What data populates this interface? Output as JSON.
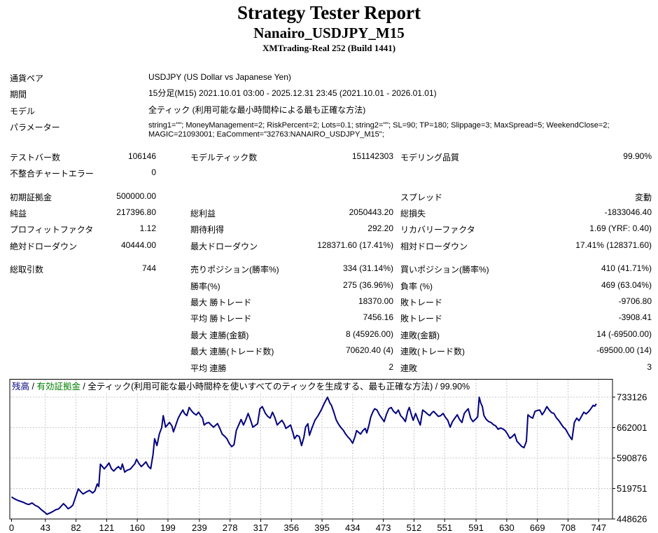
{
  "header": {
    "title": "Strategy Tester Report",
    "symbol_name": "Nanairo_USDJPY_M15",
    "server": "XMTrading-Real 252 (Build 1441)"
  },
  "settings": {
    "rows": [
      {
        "label": "通貨ペア",
        "value": "USDJPY (US Dollar vs Japanese Yen)"
      },
      {
        "label": "期間",
        "value": "15分足(M15) 2021.10.01 03:00 - 2025.12.31 23:45 (2021.10.01 - 2026.01.01)"
      },
      {
        "label": "モデル",
        "value": "全ティック (利用可能な最小時間枠による最も正確な方法)"
      },
      {
        "label": "パラメーター",
        "value": "string1=\"\"; MoneyManagement=2; RiskPercent=2; Lots=0.1; string2=\"\"; SL=90; TP=180; Slippage=3; MaxSpread=5; WeekendClose=2; MAGIC=21093001; EaComment=\"32763:NANAIRO_USDJPY_M15\";"
      }
    ]
  },
  "stats": {
    "rows": [
      {
        "c1": "テストバー数",
        "v1": "106146",
        "c2": "モデルティック数",
        "v2": "151142303",
        "c3": "モデリング品質",
        "v3": "99.90%",
        "gap": false
      },
      {
        "c1": "不整合チャートエラー",
        "v1": "0",
        "c2": "",
        "v2": "",
        "c3": "",
        "v3": "",
        "gap": false
      },
      {
        "c1": "初期証拠金",
        "v1": "500000.00",
        "c2": "",
        "v2": "",
        "c3": "スプレッド",
        "v3": "変動",
        "gap": true
      },
      {
        "c1": "純益",
        "v1": "217396.80",
        "c2": "総利益",
        "v2": "2050443.20",
        "c3": "総損失",
        "v3": "-1833046.40",
        "gap": false
      },
      {
        "c1": "プロフィットファクタ",
        "v1": "1.12",
        "c2": "期待利得",
        "v2": "292.20",
        "c3": "リカバリーファクタ",
        "v3": "1.69 (YRF: 0.40)",
        "gap": false
      },
      {
        "c1": "絶対ドローダウン",
        "v1": "40444.00",
        "c2": "最大ドローダウン",
        "v2": "128371.60 (17.41%)",
        "c3": "相対ドローダウン",
        "v3": "17.41% (128371.60)",
        "gap": false
      },
      {
        "c1": "総取引数",
        "v1": "744",
        "c2": "売りポジション(勝率%)",
        "v2": "334 (31.14%)",
        "c3": "買いポジション(勝率%)",
        "v3": "410 (41.71%)",
        "gap": true
      },
      {
        "c1": "",
        "v1": "",
        "c2": "勝率(%)",
        "v2": "275 (36.96%)",
        "c3": "負率 (%)",
        "v3": "469 (63.04%)",
        "gap": false
      },
      {
        "c1": "",
        "v1": "",
        "c2": "最大 勝トレード",
        "v2": "18370.00",
        "c3": "敗トレード",
        "v3": "-9706.80",
        "gap": false
      },
      {
        "c1": "",
        "v1": "",
        "c2": "平均 勝トレード",
        "v2": "7456.16",
        "c3": "敗トレード",
        "v3": "-3908.41",
        "gap": false
      },
      {
        "c1": "",
        "v1": "",
        "c2": "最大 連勝(金額)",
        "v2": "8 (45926.00)",
        "c3": "連敗(金額)",
        "v3": "14 (-69500.00)",
        "gap": false
      },
      {
        "c1": "",
        "v1": "",
        "c2": "最大 連勝(トレード数)",
        "v2": "70620.40 (4)",
        "c3": "連敗(トレード数)",
        "v3": "-69500.00 (14)",
        "gap": false
      },
      {
        "c1": "",
        "v1": "",
        "c2": "平均 連勝",
        "v2": "2",
        "c3": "連敗",
        "v3": "3",
        "gap": false
      }
    ]
  },
  "chart_data": {
    "type": "line",
    "legend_parts": [
      {
        "text": "残高",
        "color": "#000080"
      },
      {
        "text": " / ",
        "color": "#000000"
      },
      {
        "text": "有効証拠金",
        "color": "#008000"
      },
      {
        "text": " / 全ティック(利用可能な最小時間枠を使いすべてのティックを生成する、最も正確な方法) / 99.90%",
        "color": "#000000"
      }
    ],
    "grid_color": "#c9c9c9",
    "x_ticks": [
      0,
      43,
      82,
      121,
      160,
      199,
      239,
      278,
      317,
      356,
      395,
      434,
      473,
      512,
      551,
      591,
      630,
      669,
      708,
      747
    ],
    "y_ticks": [
      448626,
      519751,
      590876,
      662001,
      733126
    ],
    "xlim": [
      0,
      765
    ],
    "ylim": [
      448626,
      733126
    ],
    "series": [
      {
        "name": "残高",
        "color": "#000080",
        "points": [
          [
            0,
            500000
          ],
          [
            4,
            495500
          ],
          [
            8,
            492000
          ],
          [
            12,
            489500
          ],
          [
            15,
            487500
          ],
          [
            19,
            484000
          ],
          [
            22,
            482500
          ],
          [
            26,
            486000
          ],
          [
            30,
            480500
          ],
          [
            34,
            477000
          ],
          [
            38,
            470000
          ],
          [
            42,
            464500
          ],
          [
            45,
            459556
          ],
          [
            48,
            462000
          ],
          [
            52,
            465500
          ],
          [
            56,
            470000
          ],
          [
            60,
            472500
          ],
          [
            63,
            478000
          ],
          [
            66,
            484500
          ],
          [
            69,
            479000
          ],
          [
            72,
            472500
          ],
          [
            75,
            476000
          ],
          [
            78,
            481000
          ],
          [
            82,
            503000
          ],
          [
            85,
            519000
          ],
          [
            88,
            512500
          ],
          [
            91,
            507000
          ],
          [
            95,
            511500
          ],
          [
            99,
            515500
          ],
          [
            103,
            509500
          ],
          [
            106,
            514000
          ],
          [
            109,
            530500
          ],
          [
            111,
            524500
          ],
          [
            113,
            576500
          ],
          [
            116,
            570000
          ],
          [
            118,
            565500
          ],
          [
            121,
            572000
          ],
          [
            124,
            579500
          ],
          [
            127,
            566000
          ],
          [
            130,
            560500
          ],
          [
            133,
            566500
          ],
          [
            136,
            571000
          ],
          [
            139,
            564500
          ],
          [
            141,
            577000
          ],
          [
            144,
            558000
          ],
          [
            147,
            562500
          ],
          [
            151,
            565000
          ],
          [
            154,
            571500
          ],
          [
            157,
            578000
          ],
          [
            159,
            588000
          ],
          [
            162,
            578500
          ],
          [
            165,
            571000
          ],
          [
            168,
            576000
          ],
          [
            171,
            582000
          ],
          [
            174,
            571500
          ],
          [
            177,
            566000
          ],
          [
            180,
            599000
          ],
          [
            182,
            636000
          ],
          [
            185,
            620000
          ],
          [
            188,
            647000
          ],
          [
            191,
            662000
          ],
          [
            193,
            690000
          ],
          [
            196,
            663000
          ],
          [
            199,
            670000
          ],
          [
            201,
            674000
          ],
          [
            204,
            666000
          ],
          [
            206,
            652000
          ],
          [
            209,
            668000
          ],
          [
            212,
            684000
          ],
          [
            215,
            694000
          ],
          [
            218,
            703000
          ],
          [
            220,
            695000
          ],
          [
            223,
            690000
          ],
          [
            226,
            709000
          ],
          [
            229,
            701000
          ],
          [
            232,
            695000
          ],
          [
            235,
            691500
          ],
          [
            238,
            698000
          ],
          [
            241,
            689000
          ],
          [
            243,
            684000
          ],
          [
            245,
            668000
          ],
          [
            248,
            672500
          ],
          [
            251,
            674000
          ],
          [
            254,
            668000
          ],
          [
            257,
            663000
          ],
          [
            260,
            668000
          ],
          [
            262,
            671500
          ],
          [
            265,
            660000
          ],
          [
            268,
            647000
          ],
          [
            271,
            642000
          ],
          [
            274,
            636000
          ],
          [
            277,
            625000
          ],
          [
            280,
            617500
          ],
          [
            283,
            622000
          ],
          [
            286,
            655500
          ],
          [
            289,
            668000
          ],
          [
            292,
            681000
          ],
          [
            295,
            668000
          ],
          [
            298,
            680000
          ],
          [
            301,
            695000
          ],
          [
            304,
            680000
          ],
          [
            307,
            663000
          ],
          [
            310,
            667000
          ],
          [
            313,
            671000
          ],
          [
            316,
            706000
          ],
          [
            319,
            711000
          ],
          [
            323,
            695000
          ],
          [
            326,
            688000
          ],
          [
            329,
            684000
          ],
          [
            332,
            698000
          ],
          [
            335,
            685000
          ],
          [
            338,
            668000
          ],
          [
            341,
            674000
          ],
          [
            344,
            679000
          ],
          [
            347,
            670000
          ],
          [
            349,
            660000
          ],
          [
            352,
            664000
          ],
          [
            355,
            668000
          ],
          [
            358,
            650000
          ],
          [
            360,
            636000
          ],
          [
            363,
            644000
          ],
          [
            366,
            641000
          ],
          [
            369,
            620000
          ],
          [
            372,
            640000
          ],
          [
            374,
            663000
          ],
          [
            377,
            671000
          ],
          [
            379,
            644000
          ],
          [
            382,
            660000
          ],
          [
            386,
            679000
          ],
          [
            390,
            690000
          ],
          [
            394,
            703000
          ],
          [
            398,
            719000
          ],
          [
            402,
            733000
          ],
          [
            405,
            719000
          ],
          [
            407,
            714000
          ],
          [
            410,
            698000
          ],
          [
            413,
            680000
          ],
          [
            416,
            670000
          ],
          [
            419,
            662000
          ],
          [
            422,
            656000
          ],
          [
            425,
            647000
          ],
          [
            428,
            640000
          ],
          [
            431,
            634000
          ],
          [
            434,
            625500
          ],
          [
            437,
            641000
          ],
          [
            439,
            655000
          ],
          [
            442,
            650000
          ],
          [
            444,
            647000
          ],
          [
            447,
            655000
          ],
          [
            450,
            660000
          ],
          [
            452,
            649500
          ],
          [
            455,
            670000
          ],
          [
            457,
            687000
          ],
          [
            460,
            700000
          ],
          [
            462,
            706000
          ],
          [
            465,
            703000
          ],
          [
            468,
            692000
          ],
          [
            471,
            684000
          ],
          [
            474,
            676000
          ],
          [
            477,
            693000
          ],
          [
            480,
            706000
          ],
          [
            483,
            709000
          ],
          [
            486,
            700000
          ],
          [
            489,
            695000
          ],
          [
            492,
            703000
          ],
          [
            495,
            690000
          ],
          [
            498,
            684000
          ],
          [
            501,
            676000
          ],
          [
            504,
            700000
          ],
          [
            506,
            709000
          ],
          [
            509,
            690000
          ],
          [
            511,
            679000
          ],
          [
            514,
            695000
          ],
          [
            517,
            681000
          ],
          [
            520,
            668000
          ],
          [
            523,
            703000
          ],
          [
            526,
            699000
          ],
          [
            529,
            694000
          ],
          [
            532,
            690000
          ],
          [
            535,
            697000
          ],
          [
            537,
            700000
          ],
          [
            540,
            694000
          ],
          [
            543,
            688000
          ],
          [
            546,
            690000
          ],
          [
            549,
            695000
          ],
          [
            552,
            686000
          ],
          [
            555,
            679000
          ],
          [
            558,
            663000
          ],
          [
            561,
            676000
          ],
          [
            564,
            684000
          ],
          [
            567,
            692000
          ],
          [
            570,
            681000
          ],
          [
            573,
            674000
          ],
          [
            576,
            695000
          ],
          [
            579,
            702000
          ],
          [
            581,
            706000
          ],
          [
            584,
            684000
          ],
          [
            587,
            676000
          ],
          [
            590,
            681000
          ],
          [
            593,
            687000
          ],
          [
            595,
            733000
          ],
          [
            597,
            719000
          ],
          [
            599,
            711000
          ],
          [
            601,
            690000
          ],
          [
            604,
            681000
          ],
          [
            607,
            676000
          ],
          [
            610,
            674000
          ],
          [
            613,
            669000
          ],
          [
            616,
            666000
          ],
          [
            619,
            658000
          ],
          [
            622,
            661000
          ],
          [
            625,
            659000
          ],
          [
            628,
            655000
          ],
          [
            631,
            647000
          ],
          [
            634,
            637000
          ],
          [
            637,
            641000
          ],
          [
            640,
            647000
          ],
          [
            643,
            630000
          ],
          [
            646,
            624000
          ],
          [
            649,
            618000
          ],
          [
            652,
            615000
          ],
          [
            655,
            630000
          ],
          [
            657,
            692000
          ],
          [
            660,
            687000
          ],
          [
            663,
            684000
          ],
          [
            666,
            700000
          ],
          [
            669,
            702000
          ],
          [
            672,
            703000
          ],
          [
            675,
            692000
          ],
          [
            678,
            700000
          ],
          [
            681,
            711000
          ],
          [
            684,
            703000
          ],
          [
            687,
            697000
          ],
          [
            690,
            695000
          ],
          [
            693,
            685000
          ],
          [
            696,
            679000
          ],
          [
            699,
            671000
          ],
          [
            702,
            663000
          ],
          [
            705,
            658000
          ],
          [
            708,
            648000
          ],
          [
            711,
            639000
          ],
          [
            713,
            634000
          ],
          [
            716,
            674000
          ],
          [
            719,
            684000
          ],
          [
            722,
            678000
          ],
          [
            725,
            688000
          ],
          [
            728,
            698000
          ],
          [
            731,
            694000
          ],
          [
            734,
            699000
          ],
          [
            737,
            706000
          ],
          [
            740,
            714000
          ],
          [
            742,
            712000
          ],
          [
            744,
            717397
          ]
        ]
      }
    ]
  }
}
